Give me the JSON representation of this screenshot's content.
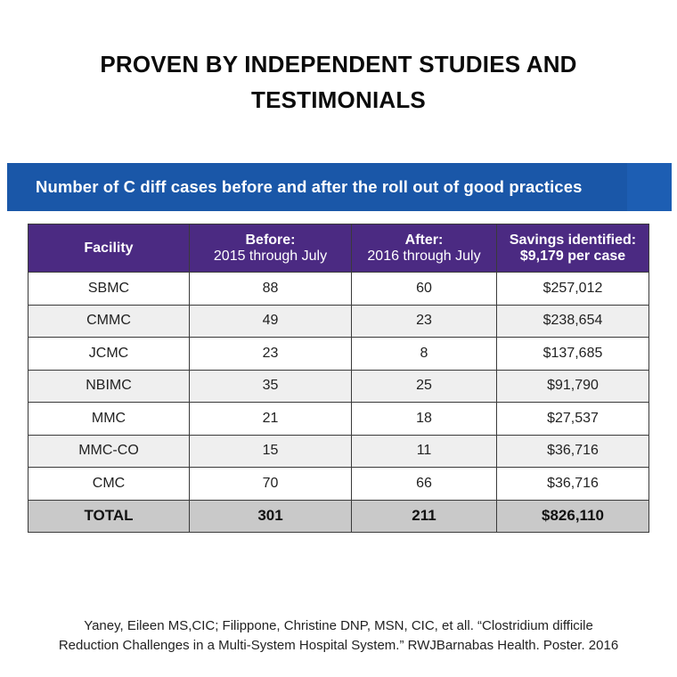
{
  "headline": {
    "line1": "PROVEN BY INDEPENDENT STUDIES AND",
    "line2": "TESTIMONIALS"
  },
  "banner": {
    "title": "Number of C diff cases before and after the roll out of good practices",
    "color": "#1a57a8"
  },
  "table": {
    "header_color": "#4b2a82",
    "headers": {
      "facility": "Facility",
      "before_top": "Before:",
      "before_sub": "2015 through July",
      "after_top": "After:",
      "after_sub": "2016 through July",
      "savings_top": "Savings identified:",
      "savings_sub": "$9,179 per case"
    },
    "rows": [
      {
        "facility": "SBMC",
        "before": "88",
        "after": "60",
        "savings": "$257,012"
      },
      {
        "facility": "CMMC",
        "before": "49",
        "after": "23",
        "savings": "$238,654"
      },
      {
        "facility": "JCMC",
        "before": "23",
        "after": "8",
        "savings": "$137,685"
      },
      {
        "facility": "NBIMC",
        "before": "35",
        "after": "25",
        "savings": "$91,790"
      },
      {
        "facility": "MMC",
        "before": "21",
        "after": "18",
        "savings": "$27,537"
      },
      {
        "facility": "MMC-CO",
        "before": "15",
        "after": "11",
        "savings": "$36,716"
      },
      {
        "facility": "CMC",
        "before": "70",
        "after": "66",
        "savings": "$36,716"
      }
    ],
    "total": {
      "facility": "TOTAL",
      "before": "301",
      "after": "211",
      "savings": "$826,110"
    }
  },
  "citation": {
    "line1": "Yaney, Eileen MS,CIC; Filippone, Christine DNP, MSN, CIC, et all. “Clostridium difficile",
    "line2": "Reduction Challenges in a Multi-System Hospital System.” RWJBarnabas Health. Poster. 2016"
  }
}
